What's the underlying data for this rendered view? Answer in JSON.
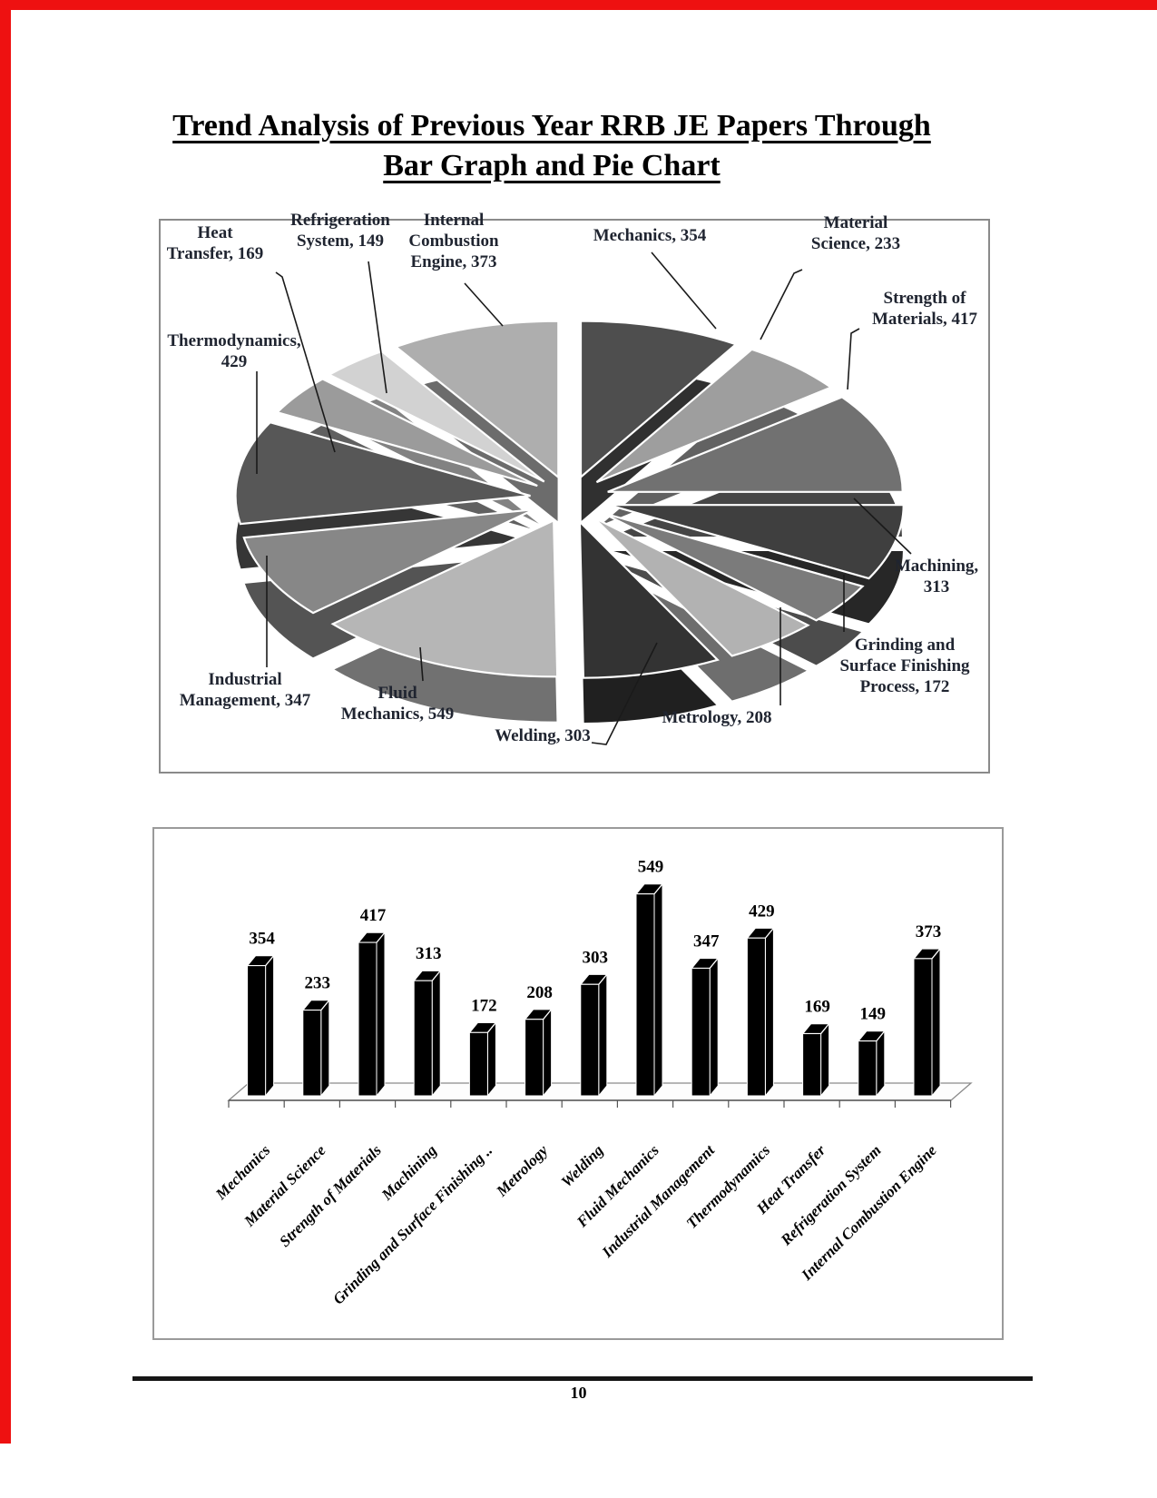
{
  "page": {
    "title_line1": "Trend Analysis of Previous Year RRB JE Papers Through",
    "title_line2": "Bar Graph and Pie Chart",
    "page_number": "10",
    "margin_line_color": "#ee1111",
    "label_text_color": "#1f2430"
  },
  "chart_data": [
    {
      "type": "pie",
      "style": "3d-exploded",
      "legend_position": "none",
      "slices": [
        {
          "label": "Mechanics",
          "value": 354,
          "color": "#4e4e4e",
          "display_lines": [
            "Mechanics, 354"
          ]
        },
        {
          "label": "Material Science",
          "value": 233,
          "color": "#9e9e9e",
          "display_lines": [
            "Material",
            "Science, 233"
          ]
        },
        {
          "label": "Strength of Materials",
          "value": 417,
          "color": "#717171",
          "display_lines": [
            "Strength of",
            "Materials, 417"
          ]
        },
        {
          "label": "Machining",
          "value": 313,
          "color": "#3f3f3f",
          "display_lines": [
            "Machining,",
            "313"
          ]
        },
        {
          "label": "Grinding and Surface Finishing Process",
          "value": 172,
          "color": "#7b7b7b",
          "display_lines": [
            "Grinding and",
            "Surface Finishing",
            "Process, 172"
          ]
        },
        {
          "label": "Metrology",
          "value": 208,
          "color": "#b2b2b2",
          "display_lines": [
            "Metrology, 208"
          ]
        },
        {
          "label": "Welding",
          "value": 303,
          "color": "#333333",
          "display_lines": [
            "Welding, 303"
          ]
        },
        {
          "label": "Fluid Mechanics",
          "value": 549,
          "color": "#b6b6b6",
          "display_lines": [
            "Fluid",
            "Mechanics, 549"
          ]
        },
        {
          "label": "Industrial Management",
          "value": 347,
          "color": "#878787",
          "display_lines": [
            "Industrial",
            "Management, 347"
          ]
        },
        {
          "label": "Thermodynamics",
          "value": 429,
          "color": "#575757",
          "display_lines": [
            "Thermodynamics,",
            "429"
          ]
        },
        {
          "label": "Heat Transfer",
          "value": 169,
          "color": "#9b9b9b",
          "display_lines": [
            "Heat",
            "Transfer, 169"
          ]
        },
        {
          "label": "Refrigeration System",
          "value": 149,
          "color": "#d2d2d2",
          "display_lines": [
            "Refrigeration",
            "System, 149"
          ]
        },
        {
          "label": "Internal Combustion Engine",
          "value": 373,
          "color": "#aeaeae",
          "display_lines": [
            "Internal",
            "Combustion",
            "Engine, 373"
          ]
        }
      ]
    },
    {
      "type": "bar",
      "style": "3d-column",
      "bar_color": "#000000",
      "value_labels_shown": true,
      "categories": [
        "Mechanics",
        "Material Science",
        "Strength of Materials",
        "Machining",
        "Grinding and Surface Finishing ..",
        "Metrology",
        "Welding",
        "Fluid Mechanics",
        "Industrial Management",
        "Thermodynamics",
        "Heat Transfer",
        "Refrigeration System",
        "Internal Combustion Engine"
      ],
      "values": [
        354,
        233,
        417,
        313,
        172,
        208,
        303,
        549,
        347,
        429,
        169,
        149,
        373
      ]
    }
  ]
}
